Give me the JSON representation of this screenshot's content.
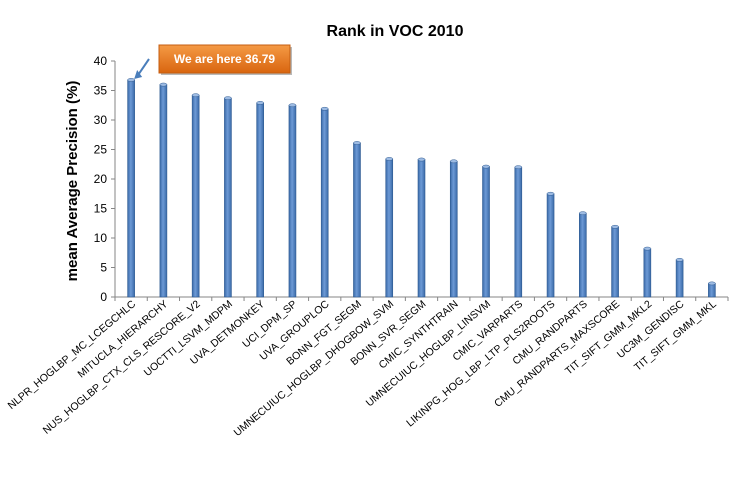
{
  "chart_data": {
    "type": "bar",
    "title": "Rank in VOC 2010",
    "xlabel": "",
    "ylabel": "mean Average Precision (%)",
    "ylim": [
      0,
      40
    ],
    "yticks": [
      0,
      5,
      10,
      15,
      20,
      25,
      30,
      35,
      40
    ],
    "grid": false,
    "legend": "none",
    "bar_color": "#4a7ebb",
    "categories": [
      "NLPR_HOGLBP_MC_LCEGCHLC",
      "MITUCLA_HIERARCHY",
      "NUS_HOGLBP_CTX_CLS_RESCORE_V2",
      "UOCTTI_LSVM_MDPM",
      "UVA_DETMONKEY",
      "UCI_DPM_SP",
      "UVA_GROUPLOC",
      "BONN_FGT_SEGM",
      "UMNECUIUC_HOGLBP_DHOGBOW_SVM",
      "BONN_SVR_SEGM",
      "CMIC_SYNTHTRAIN",
      "UMNECUIUC_HOGLBP_LINSVM",
      "CMIC_VARPARTS",
      "LIKINPG_HOG_LBP_LTP_PLS2ROOTS",
      "CMU_RANDPARTS",
      "CMU_RANDPARTS_MAXSCORE",
      "TIT_SIFT_GMM_MKL2",
      "UC3M_GENDISC",
      "TIT_SIFT_GMM_MKL"
    ],
    "values": [
      36.79,
      36.0,
      34.2,
      33.7,
      32.9,
      32.5,
      31.9,
      26.1,
      23.4,
      23.3,
      23.0,
      22.1,
      22.0,
      17.5,
      14.2,
      11.9,
      8.2,
      6.3,
      2.3
    ],
    "annotation": {
      "text": "We are here 36.79",
      "target_index": 0,
      "box_color": "#e8771e"
    }
  }
}
